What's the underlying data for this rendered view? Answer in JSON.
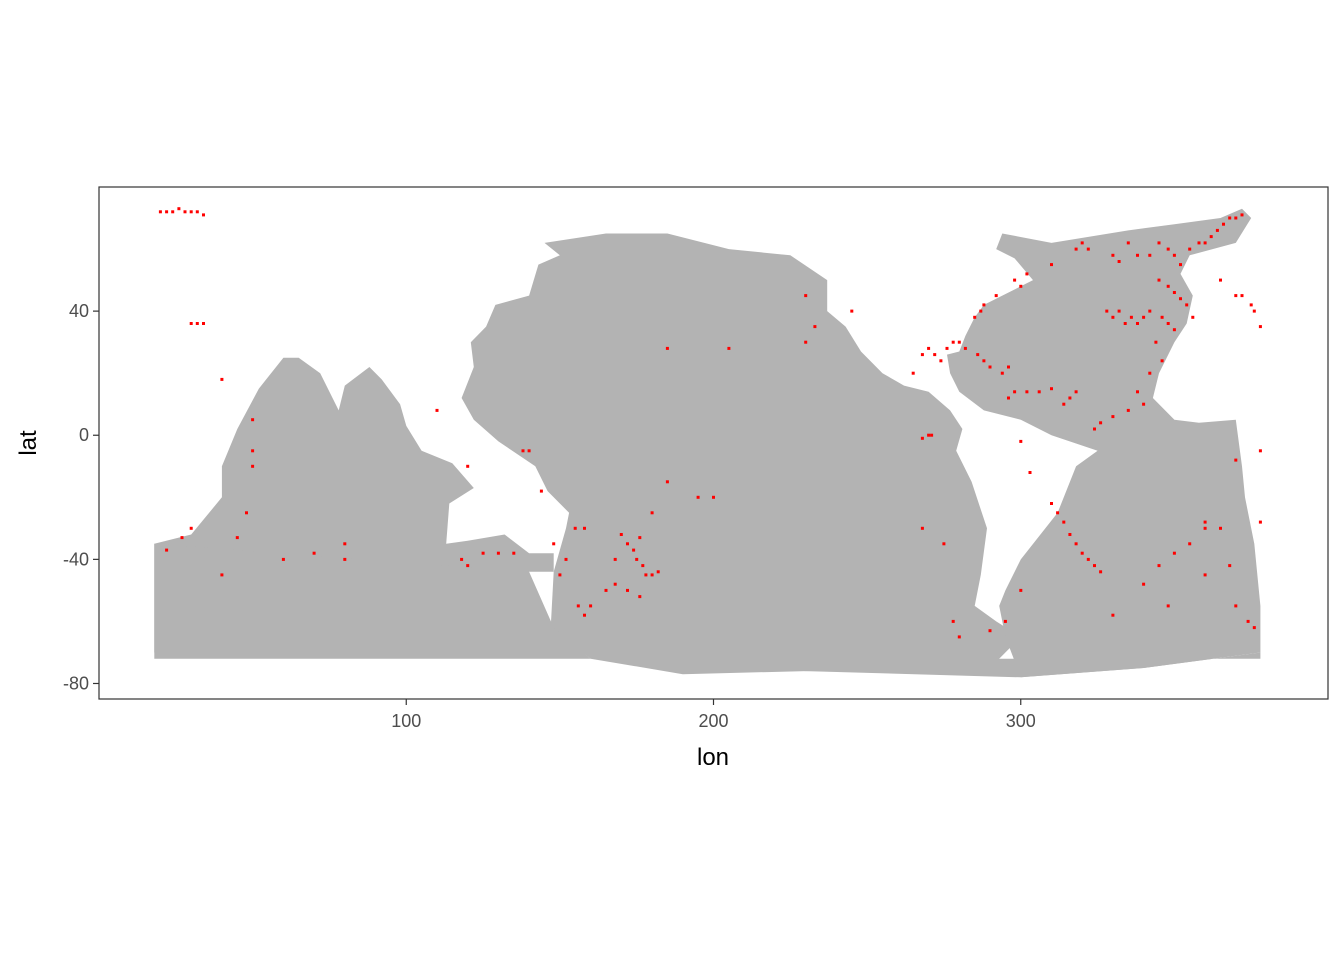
{
  "chart_data": {
    "type": "raster-map",
    "xlabel": "lon",
    "ylabel": "lat",
    "xlim": [
      0,
      400
    ],
    "ylim": [
      -85,
      80
    ],
    "x_ticks": [
      100,
      200,
      300
    ],
    "y_ticks": [
      40,
      0,
      -40,
      -80
    ],
    "grid": false,
    "ocean_color": "#b3b3b3",
    "point_color": "#ff0000",
    "panel_border_color": "#333333",
    "ocean_regions": [
      {
        "name": "indian-ocean",
        "outline": [
          [
            18,
            -35
          ],
          [
            30,
            -32
          ],
          [
            40,
            -20
          ],
          [
            40,
            -10
          ],
          [
            45,
            2
          ],
          [
            52,
            15
          ],
          [
            60,
            25
          ],
          [
            65,
            25
          ],
          [
            72,
            20
          ],
          [
            78,
            8
          ],
          [
            80,
            16
          ],
          [
            88,
            22
          ],
          [
            92,
            18
          ],
          [
            98,
            10
          ],
          [
            100,
            3
          ],
          [
            105,
            -5
          ],
          [
            115,
            -9
          ],
          [
            122,
            -17
          ],
          [
            114,
            -22
          ],
          [
            113,
            -35
          ],
          [
            120,
            -34
          ],
          [
            132,
            -32
          ],
          [
            140,
            -38
          ],
          [
            148,
            -38
          ],
          [
            148,
            -44
          ],
          [
            140,
            -44
          ],
          [
            100,
            -66
          ],
          [
            60,
            -67
          ],
          [
            18,
            -70
          ]
        ]
      },
      {
        "name": "pacific-ocean",
        "outline": [
          [
            145,
            62
          ],
          [
            165,
            65
          ],
          [
            185,
            65
          ],
          [
            205,
            60
          ],
          [
            225,
            58
          ],
          [
            237,
            50
          ],
          [
            237,
            40
          ],
          [
            243,
            35
          ],
          [
            248,
            27
          ],
          [
            255,
            20
          ],
          [
            262,
            16
          ],
          [
            270,
            14
          ],
          [
            277,
            8
          ],
          [
            281,
            2
          ],
          [
            279,
            -5
          ],
          [
            284,
            -15
          ],
          [
            289,
            -30
          ],
          [
            287,
            -45
          ],
          [
            285,
            -55
          ],
          [
            292,
            -60
          ],
          [
            300,
            -65
          ],
          [
            290,
            -75
          ],
          [
            230,
            -76
          ],
          [
            190,
            -77
          ],
          [
            160,
            -72
          ],
          [
            147,
            -62
          ],
          [
            148,
            -44
          ],
          [
            152,
            -30
          ],
          [
            153,
            -25
          ],
          [
            146,
            -18
          ],
          [
            142,
            -10
          ],
          [
            130,
            -2
          ],
          [
            122,
            5
          ],
          [
            118,
            12
          ],
          [
            122,
            22
          ],
          [
            121,
            30
          ],
          [
            126,
            35
          ],
          [
            129,
            42
          ],
          [
            140,
            45
          ],
          [
            143,
            55
          ],
          [
            150,
            58
          ]
        ]
      },
      {
        "name": "atlantic-ocean",
        "outline": [
          [
            294,
            65
          ],
          [
            310,
            62
          ],
          [
            335,
            66
          ],
          [
            350,
            68
          ],
          [
            365,
            70
          ],
          [
            372,
            73
          ],
          [
            375,
            70
          ],
          [
            370,
            62
          ],
          [
            355,
            58
          ],
          [
            352,
            52
          ],
          [
            356,
            45
          ],
          [
            354,
            36
          ],
          [
            350,
            30
          ],
          [
            345,
            20
          ],
          [
            343,
            12
          ],
          [
            350,
            5
          ],
          [
            358,
            4
          ],
          [
            370,
            5
          ],
          [
            372,
            -10
          ],
          [
            373,
            -20
          ],
          [
            376,
            -35
          ],
          [
            378,
            -55
          ],
          [
            378,
            -70
          ],
          [
            340,
            -75
          ],
          [
            300,
            -78
          ],
          [
            295,
            -65
          ],
          [
            293,
            -55
          ],
          [
            295,
            -50
          ],
          [
            300,
            -40
          ],
          [
            312,
            -25
          ],
          [
            318,
            -10
          ],
          [
            325,
            -5
          ],
          [
            310,
            0
          ],
          [
            300,
            5
          ],
          [
            288,
            8
          ],
          [
            280,
            14
          ],
          [
            277,
            20
          ],
          [
            276,
            26
          ],
          [
            280,
            27
          ],
          [
            282,
            32
          ],
          [
            285,
            38
          ],
          [
            288,
            42
          ],
          [
            294,
            45
          ],
          [
            300,
            48
          ],
          [
            304,
            50
          ],
          [
            298,
            57
          ],
          [
            292,
            60
          ]
        ]
      },
      {
        "name": "southern-ocean",
        "outline": [
          [
            18,
            -35
          ],
          [
            140,
            -44
          ],
          [
            148,
            -62
          ],
          [
            160,
            -72
          ],
          [
            230,
            -76
          ],
          [
            300,
            -78
          ],
          [
            340,
            -75
          ],
          [
            378,
            -70
          ],
          [
            378,
            -72
          ],
          [
            18,
            -72
          ]
        ]
      }
    ],
    "points": [
      [
        20,
        72
      ],
      [
        22,
        72
      ],
      [
        24,
        72
      ],
      [
        26,
        73
      ],
      [
        28,
        72
      ],
      [
        30,
        72
      ],
      [
        32,
        72
      ],
      [
        34,
        71
      ],
      [
        30,
        36
      ],
      [
        32,
        36
      ],
      [
        34,
        36
      ],
      [
        40,
        18
      ],
      [
        45,
        -33
      ],
      [
        48,
        -25
      ],
      [
        50,
        -10
      ],
      [
        50,
        -5
      ],
      [
        50,
        5
      ],
      [
        30,
        -30
      ],
      [
        27,
        -33
      ],
      [
        22,
        -37
      ],
      [
        40,
        -45
      ],
      [
        60,
        -40
      ],
      [
        70,
        -38
      ],
      [
        80,
        -35
      ],
      [
        80,
        -40
      ],
      [
        110,
        8
      ],
      [
        118,
        -40
      ],
      [
        120,
        -10
      ],
      [
        120,
        -42
      ],
      [
        125,
        -38
      ],
      [
        130,
        -38
      ],
      [
        135,
        -38
      ],
      [
        140,
        -5
      ],
      [
        138,
        -5
      ],
      [
        144,
        -18
      ],
      [
        148,
        -35
      ],
      [
        150,
        -45
      ],
      [
        152,
        -40
      ],
      [
        155,
        -30
      ],
      [
        158,
        -30
      ],
      [
        156,
        -55
      ],
      [
        158,
        -58
      ],
      [
        160,
        -55
      ],
      [
        165,
        -50
      ],
      [
        168,
        -40
      ],
      [
        170,
        -32
      ],
      [
        172,
        -35
      ],
      [
        174,
        -37
      ],
      [
        175,
        -40
      ],
      [
        177,
        -42
      ],
      [
        178,
        -45
      ],
      [
        180,
        -45
      ],
      [
        176,
        -33
      ],
      [
        182,
        -44
      ],
      [
        185,
        -15
      ],
      [
        168,
        -48
      ],
      [
        172,
        -50
      ],
      [
        176,
        -52
      ],
      [
        180,
        -25
      ],
      [
        195,
        -20
      ],
      [
        200,
        -20
      ],
      [
        185,
        28
      ],
      [
        205,
        28
      ],
      [
        230,
        45
      ],
      [
        230,
        30
      ],
      [
        233,
        35
      ],
      [
        245,
        40
      ],
      [
        265,
        20
      ],
      [
        268,
        -1
      ],
      [
        270,
        0
      ],
      [
        271,
        0
      ],
      [
        268,
        -30
      ],
      [
        275,
        -35
      ],
      [
        285,
        38
      ],
      [
        287,
        40
      ],
      [
        288,
        42
      ],
      [
        292,
        45
      ],
      [
        298,
        50
      ],
      [
        300,
        48
      ],
      [
        302,
        52
      ],
      [
        310,
        55
      ],
      [
        318,
        60
      ],
      [
        320,
        62
      ],
      [
        322,
        60
      ],
      [
        330,
        58
      ],
      [
        332,
        56
      ],
      [
        335,
        62
      ],
      [
        338,
        58
      ],
      [
        342,
        58
      ],
      [
        345,
        62
      ],
      [
        348,
        60
      ],
      [
        350,
        58
      ],
      [
        352,
        55
      ],
      [
        355,
        60
      ],
      [
        358,
        62
      ],
      [
        360,
        62
      ],
      [
        362,
        64
      ],
      [
        364,
        66
      ],
      [
        366,
        68
      ],
      [
        368,
        70
      ],
      [
        370,
        70
      ],
      [
        372,
        71
      ],
      [
        365,
        50
      ],
      [
        370,
        45
      ],
      [
        372,
        45
      ],
      [
        375,
        42
      ],
      [
        376,
        40
      ],
      [
        378,
        35
      ],
      [
        345,
        50
      ],
      [
        348,
        48
      ],
      [
        350,
        46
      ],
      [
        352,
        44
      ],
      [
        354,
        42
      ],
      [
        356,
        38
      ],
      [
        342,
        40
      ],
      [
        340,
        38
      ],
      [
        338,
        36
      ],
      [
        336,
        38
      ],
      [
        334,
        36
      ],
      [
        332,
        40
      ],
      [
        330,
        38
      ],
      [
        328,
        40
      ],
      [
        346,
        38
      ],
      [
        348,
        36
      ],
      [
        350,
        34
      ],
      [
        344,
        30
      ],
      [
        346,
        24
      ],
      [
        342,
        20
      ],
      [
        340,
        10
      ],
      [
        338,
        14
      ],
      [
        335,
        8
      ],
      [
        330,
        6
      ],
      [
        326,
        4
      ],
      [
        324,
        2
      ],
      [
        314,
        10
      ],
      [
        316,
        12
      ],
      [
        318,
        14
      ],
      [
        310,
        15
      ],
      [
        306,
        14
      ],
      [
        302,
        14
      ],
      [
        298,
        14
      ],
      [
        296,
        12
      ],
      [
        294,
        20
      ],
      [
        296,
        22
      ],
      [
        290,
        22
      ],
      [
        288,
        24
      ],
      [
        286,
        26
      ],
      [
        282,
        28
      ],
      [
        280,
        30
      ],
      [
        278,
        30
      ],
      [
        276,
        28
      ],
      [
        274,
        24
      ],
      [
        272,
        26
      ],
      [
        270,
        28
      ],
      [
        268,
        26
      ],
      [
        300,
        -2
      ],
      [
        303,
        -12
      ],
      [
        310,
        -22
      ],
      [
        312,
        -25
      ],
      [
        314,
        -28
      ],
      [
        316,
        -32
      ],
      [
        318,
        -35
      ],
      [
        320,
        -38
      ],
      [
        322,
        -40
      ],
      [
        324,
        -42
      ],
      [
        326,
        -44
      ],
      [
        300,
        -50
      ],
      [
        295,
        -60
      ],
      [
        290,
        -63
      ],
      [
        280,
        -65
      ],
      [
        278,
        -60
      ],
      [
        330,
        -58
      ],
      [
        340,
        -48
      ],
      [
        345,
        -42
      ],
      [
        350,
        -38
      ],
      [
        355,
        -35
      ],
      [
        360,
        -30
      ],
      [
        365,
        -30
      ],
      [
        368,
        -42
      ],
      [
        370,
        -55
      ],
      [
        374,
        -60
      ],
      [
        376,
        -62
      ],
      [
        378,
        -28
      ],
      [
        378,
        -5
      ],
      [
        360,
        -28
      ],
      [
        370,
        -8
      ],
      [
        360,
        -45
      ],
      [
        348,
        -55
      ]
    ]
  }
}
